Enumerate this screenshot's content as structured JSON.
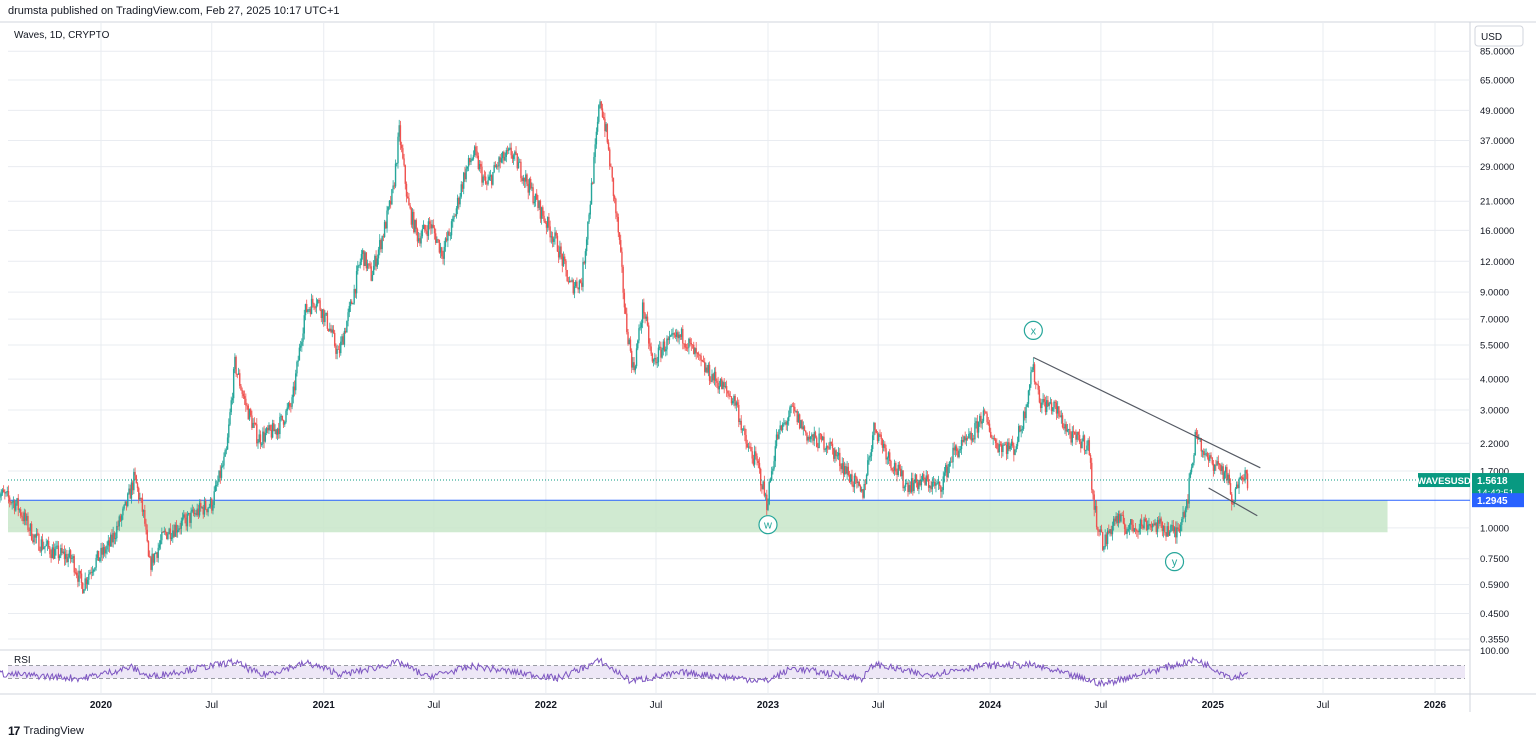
{
  "header": {
    "published": "drumsta published on TradingView.com, Feb 27, 2025 10:17 UTC+1",
    "symbol_line": "Waves, 1D, CRYPTO"
  },
  "footer": {
    "brand": "TradingView",
    "logo_glyph": "17"
  },
  "colors": {
    "up": "#26a69a",
    "down": "#ef5350",
    "grid": "#e9ecf1",
    "support_zone": "#c8e6c9",
    "support_line": "#2962ff",
    "trendline": "#555a64",
    "wave_label": "#26a69a",
    "rsi_line": "#7e57c2",
    "rsi_band": "#ede7f6",
    "price_tag": "#089981",
    "level_tag": "#2962ff"
  },
  "chart_data": {
    "type": "candlestick",
    "scale": "log",
    "currency_label": "USD",
    "price_ticks": [
      "85.0000",
      "65.0000",
      "49.0000",
      "37.0000",
      "29.0000",
      "21.0000",
      "16.0000",
      "12.0000",
      "9.0000",
      "7.0000",
      "5.5000",
      "4.0000",
      "3.0000",
      "2.2000",
      "1.7000",
      "1.0000",
      "0.7500",
      "0.5900",
      "0.4500",
      "0.3550"
    ],
    "time_ticks": [
      "2020",
      "Jul",
      "2021",
      "Jul",
      "2022",
      "Jul",
      "2023",
      "Jul",
      "2024",
      "Jul",
      "2025",
      "Jul",
      "2026"
    ],
    "approx_close_path": [
      [
        "2019-07-15",
        1.4
      ],
      [
        "2019-08-15",
        1.25
      ],
      [
        "2019-09-15",
        0.9
      ],
      [
        "2019-10-15",
        0.8
      ],
      [
        "2019-11-15",
        0.75
      ],
      [
        "2019-12-01",
        0.58
      ],
      [
        "2019-12-20",
        0.72
      ],
      [
        "2020-01-15",
        0.85
      ],
      [
        "2020-02-10",
        1.2
      ],
      [
        "2020-02-25",
        1.6
      ],
      [
        "2020-03-12",
        1.1
      ],
      [
        "2020-03-20",
        0.7
      ],
      [
        "2020-04-15",
        0.95
      ],
      [
        "2020-05-15",
        1.05
      ],
      [
        "2020-06-15",
        1.2
      ],
      [
        "2020-07-01",
        1.25
      ],
      [
        "2020-07-25",
        2.0
      ],
      [
        "2020-08-08",
        4.6
      ],
      [
        "2020-08-25",
        3.2
      ],
      [
        "2020-09-15",
        2.3
      ],
      [
        "2020-10-15",
        2.5
      ],
      [
        "2020-11-10",
        3.2
      ],
      [
        "2020-12-01",
        7.5
      ],
      [
        "2020-12-20",
        8.5
      ],
      [
        "2021-01-10",
        6.5
      ],
      [
        "2021-01-25",
        5.0
      ],
      [
        "2021-02-15",
        8.0
      ],
      [
        "2021-03-05",
        13.0
      ],
      [
        "2021-03-20",
        10.5
      ],
      [
        "2021-04-10",
        16.0
      ],
      [
        "2021-04-25",
        23.0
      ],
      [
        "2021-05-05",
        40.0
      ],
      [
        "2021-05-20",
        20.0
      ],
      [
        "2021-06-05",
        15.0
      ],
      [
        "2021-06-25",
        17.0
      ],
      [
        "2021-07-15",
        13.0
      ],
      [
        "2021-08-01",
        17.0
      ],
      [
        "2021-08-20",
        27.0
      ],
      [
        "2021-09-05",
        33.0
      ],
      [
        "2021-09-25",
        24.0
      ],
      [
        "2021-10-15",
        30.0
      ],
      [
        "2021-11-05",
        33.0
      ],
      [
        "2021-11-25",
        27.0
      ],
      [
        "2021-12-20",
        20.0
      ],
      [
        "2022-01-20",
        14.0
      ],
      [
        "2022-02-10",
        9.5
      ],
      [
        "2022-03-01",
        10.0
      ],
      [
        "2022-03-20",
        28.0
      ],
      [
        "2022-03-31",
        55.0
      ],
      [
        "2022-04-10",
        40.0
      ],
      [
        "2022-05-01",
        15.0
      ],
      [
        "2022-05-12",
        7.0
      ],
      [
        "2022-05-25",
        4.3
      ],
      [
        "2022-06-10",
        8.0
      ],
      [
        "2022-06-25",
        4.6
      ],
      [
        "2022-07-15",
        5.5
      ],
      [
        "2022-08-15",
        6.0
      ],
      [
        "2022-09-15",
        4.5
      ],
      [
        "2022-10-15",
        3.8
      ],
      [
        "2022-11-10",
        3.2
      ],
      [
        "2022-11-25",
        2.2
      ],
      [
        "2022-12-15",
        1.8
      ],
      [
        "2022-12-30",
        1.25
      ],
      [
        "2023-01-15",
        2.3
      ],
      [
        "2023-02-10",
        3.0
      ],
      [
        "2023-03-10",
        2.3
      ],
      [
        "2023-04-10",
        2.2
      ],
      [
        "2023-05-10",
        1.7
      ],
      [
        "2023-06-05",
        1.35
      ],
      [
        "2023-06-25",
        2.6
      ],
      [
        "2023-07-20",
        1.9
      ],
      [
        "2023-08-15",
        1.5
      ],
      [
        "2023-09-15",
        1.55
      ],
      [
        "2023-10-10",
        1.45
      ],
      [
        "2023-11-01",
        2.0
      ],
      [
        "2023-12-01",
        2.3
      ],
      [
        "2023-12-20",
        2.9
      ],
      [
        "2024-01-10",
        2.2
      ],
      [
        "2024-02-10",
        2.1
      ],
      [
        "2024-02-25",
        2.8
      ],
      [
        "2024-03-10",
        4.5
      ],
      [
        "2024-03-25",
        3.2
      ],
      [
        "2024-04-15",
        3.1
      ],
      [
        "2024-05-15",
        2.3
      ],
      [
        "2024-06-10",
        2.2
      ],
      [
        "2024-06-20",
        1.2
      ],
      [
        "2024-07-05",
        0.85
      ],
      [
        "2024-07-25",
        1.1
      ],
      [
        "2024-08-15",
        1.0
      ],
      [
        "2024-09-15",
        1.05
      ],
      [
        "2024-10-15",
        1.0
      ],
      [
        "2024-11-01",
        0.95
      ],
      [
        "2024-11-20",
        1.3
      ],
      [
        "2024-12-05",
        2.5
      ],
      [
        "2024-12-20",
        1.9
      ],
      [
        "2025-01-10",
        1.8
      ],
      [
        "2025-01-25",
        1.6
      ],
      [
        "2025-02-03",
        1.2
      ],
      [
        "2025-02-15",
        1.75
      ],
      [
        "2025-02-27",
        1.56
      ]
    ],
    "support_zone": {
      "from_date": "2019-07-01",
      "to_date": "2025-10-15",
      "low": 0.96,
      "high": 1.2945
    },
    "support_line": {
      "value": 1.2945
    },
    "trendlines": [
      {
        "from": [
          "2024-03-12",
          4.9
        ],
        "to": [
          "2025-03-20",
          1.75
        ]
      },
      {
        "from": [
          "2024-12-25",
          1.45
        ],
        "to": [
          "2025-03-15",
          1.12
        ]
      }
    ],
    "wave_labels": [
      {
        "text": "x",
        "date": "2024-03-12",
        "value": 6.3
      },
      {
        "text": "w",
        "date": "2023-01-01",
        "value": 1.03
      },
      {
        "text": "y",
        "date": "2024-10-30",
        "value": 0.73
      }
    ],
    "last_price": {
      "symbol": "WAVESUSD",
      "value": "1.5618",
      "countdown": "14:42:51"
    },
    "level_value": "1.2945",
    "rsi": {
      "label": "RSI",
      "axis_label": "100.00",
      "upper_band": 70,
      "lower_band": 30,
      "trend_points": [
        [
          "2019-07-15",
          45
        ],
        [
          "2019-12-01",
          30
        ],
        [
          "2020-02-20",
          65
        ],
        [
          "2020-03-20",
          35
        ],
        [
          "2020-08-08",
          82
        ],
        [
          "2020-09-20",
          40
        ],
        [
          "2020-12-05",
          78
        ],
        [
          "2021-02-01",
          42
        ],
        [
          "2021-05-05",
          80
        ],
        [
          "2021-06-20",
          35
        ],
        [
          "2021-09-05",
          68
        ],
        [
          "2022-01-20",
          30
        ],
        [
          "2022-03-31",
          85
        ],
        [
          "2022-05-20",
          22
        ],
        [
          "2022-08-15",
          48
        ],
        [
          "2022-12-30",
          22
        ],
        [
          "2023-02-10",
          62
        ],
        [
          "2023-06-05",
          30
        ],
        [
          "2023-06-25",
          75
        ],
        [
          "2023-09-15",
          40
        ],
        [
          "2023-12-20",
          70
        ],
        [
          "2024-03-10",
          72
        ],
        [
          "2024-07-05",
          12
        ],
        [
          "2024-09-15",
          50
        ],
        [
          "2024-12-05",
          88
        ],
        [
          "2025-02-03",
          32
        ],
        [
          "2025-02-27",
          50
        ]
      ]
    }
  }
}
